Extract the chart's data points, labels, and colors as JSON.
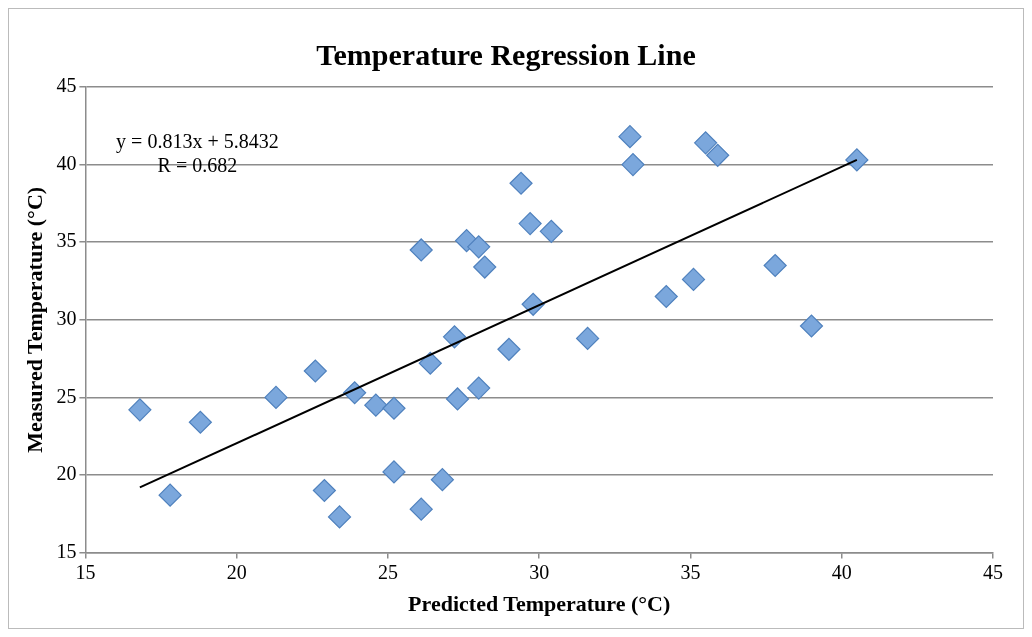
{
  "chart_data": {
    "type": "scatter",
    "title": "Temperature Regression Line",
    "xlabel": "Predicted Temperature (°C)",
    "ylabel": "Measured Temperature (°C)",
    "annotations": [
      "y = 0.813x + 5.8432",
      "R = 0.682"
    ],
    "series": [
      {
        "marker": "diamond",
        "color": "#7ba7dc",
        "x": [
          16.8,
          17.8,
          18.8,
          21.3,
          22.6,
          22.9,
          23.4,
          23.9,
          24.6,
          25.2,
          25.2,
          26.1,
          26.1,
          26.4,
          26.8,
          27.2,
          27.3,
          27.6,
          28.0,
          28.0,
          28.2,
          29.0,
          29.4,
          29.7,
          29.8,
          30.4,
          31.6,
          33.0,
          33.1,
          34.2,
          35.1,
          35.5,
          35.9,
          37.8,
          39.0,
          40.5
        ],
        "values": [
          24.2,
          18.7,
          23.4,
          25.0,
          26.7,
          19.0,
          17.3,
          25.3,
          24.5,
          24.3,
          20.2,
          17.8,
          34.5,
          27.2,
          19.7,
          28.9,
          24.9,
          35.1,
          34.7,
          25.6,
          33.4,
          28.1,
          38.8,
          36.2,
          31.0,
          35.7,
          28.8,
          41.8,
          40.0,
          31.5,
          32.6,
          41.4,
          40.6,
          33.5,
          29.6,
          40.3
        ]
      },
      {
        "type": "line",
        "marker": "none",
        "color": "#000000",
        "x": [
          16.8,
          40.5
        ],
        "values": [
          19.2,
          40.3
        ]
      }
    ],
    "xlim": [
      15,
      45
    ],
    "xticks": [
      15,
      20,
      25,
      30,
      35,
      40,
      45
    ],
    "ylim": [
      15,
      45
    ],
    "yticks": [
      15,
      20,
      25,
      30,
      35,
      40,
      45
    ],
    "grid": "y",
    "legend": false
  }
}
